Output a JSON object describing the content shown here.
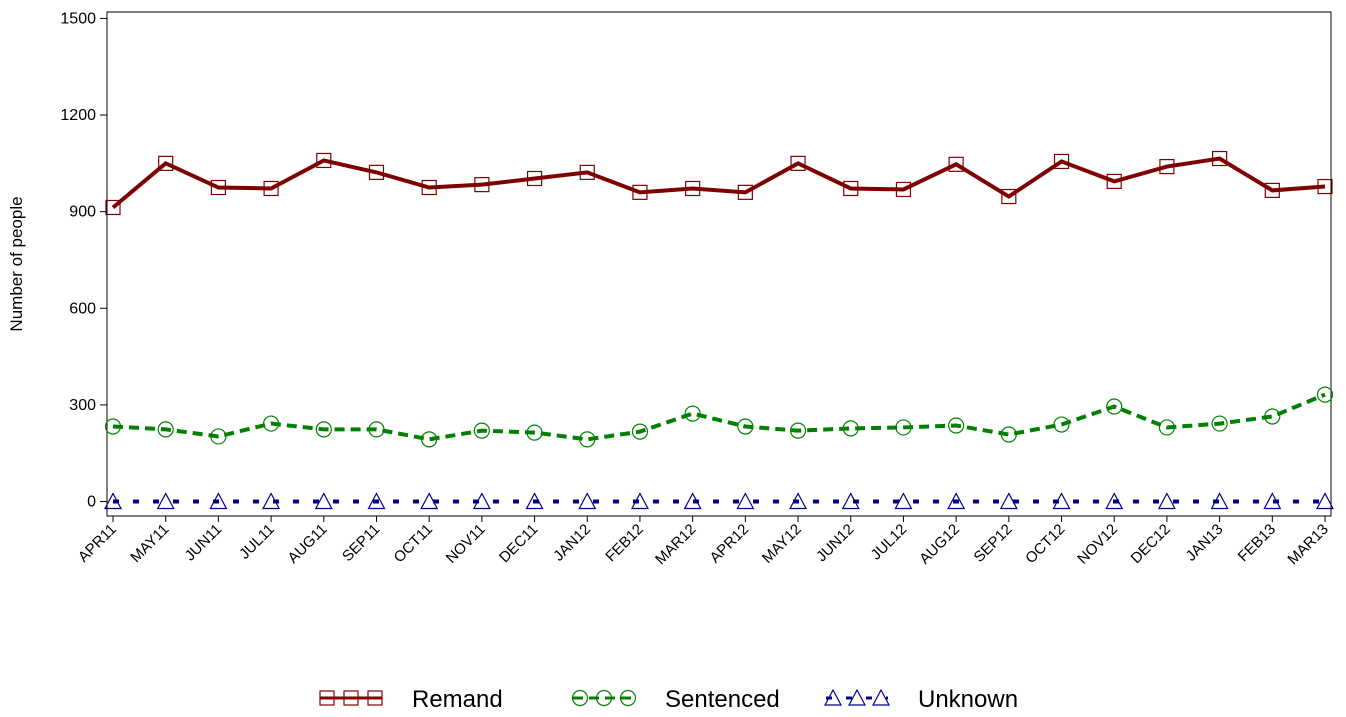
{
  "chart_data": {
    "type": "line",
    "y_label": "Number of people",
    "categories": [
      "APR11",
      "MAY11",
      "JUN11",
      "JUL11",
      "AUG11",
      "SEP11",
      "OCT11",
      "NOV11",
      "DEC11",
      "JAN12",
      "FEB12",
      "MAR12",
      "APR12",
      "MAY12",
      "JUN12",
      "JUL12",
      "AUG12",
      "SEP12",
      "OCT12",
      "NOV12",
      "DEC12",
      "JAN13",
      "FEB13",
      "MAR13"
    ],
    "series": [
      {
        "name": "Remand",
        "color": "#7f0000",
        "line_style": "solid",
        "marker": "square",
        "values": [
          913,
          1050,
          975,
          972,
          1059,
          1022,
          975,
          984,
          1003,
          1022,
          960,
          972,
          960,
          1050,
          972,
          969,
          1047,
          947,
          1056,
          994,
          1040,
          1065,
          966,
          978
        ]
      },
      {
        "name": "Sentenced",
        "color": "#008000",
        "line_style": "dashed",
        "marker": "circle",
        "values": [
          233,
          224,
          202,
          242,
          224,
          224,
          193,
          220,
          214,
          193,
          217,
          273,
          233,
          220,
          227,
          230,
          236,
          208,
          239,
          295,
          230,
          242,
          264,
          332
        ]
      },
      {
        "name": "Unknown",
        "color": "#00008b",
        "line_style": "dotted",
        "marker": "triangle",
        "values": [
          0,
          0,
          0,
          0,
          0,
          0,
          0,
          0,
          0,
          0,
          0,
          0,
          0,
          0,
          0,
          0,
          0,
          0,
          0,
          0,
          0,
          0,
          0,
          0
        ]
      }
    ],
    "ylim": [
      -45,
      1520
    ],
    "yticks": [
      0,
      300,
      600,
      900,
      1200,
      1500
    ]
  }
}
